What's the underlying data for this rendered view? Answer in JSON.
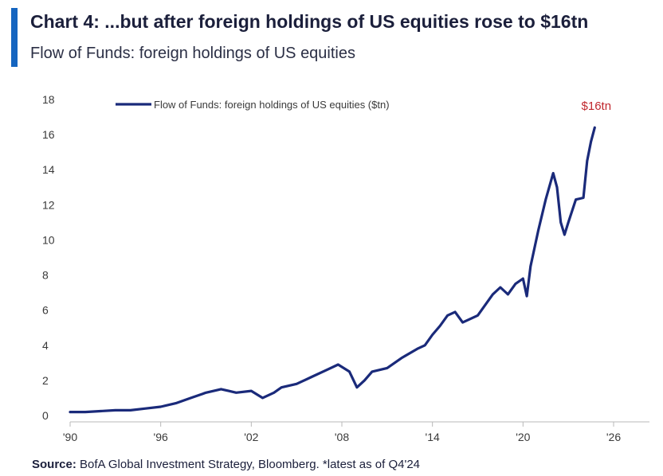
{
  "header": {
    "title": "Chart 4: ...but after foreign holdings of US equities rose to $16tn",
    "subtitle": "Flow of Funds: foreign holdings of US equities"
  },
  "source": {
    "label": "Source:",
    "text": " BofA Global Investment Strategy, Bloomberg. *latest as of Q4'24"
  },
  "colors": {
    "accent": "#1565c0",
    "series": "#1a2a7a",
    "callout": "#c0272d"
  },
  "chart_data": {
    "type": "line",
    "legend": "top-left",
    "grid": false,
    "xlim": [
      1990,
      2026
    ],
    "ylim": [
      0,
      18
    ],
    "x_ticks": [
      {
        "value": 1990,
        "label": "'90"
      },
      {
        "value": 1996,
        "label": "'96"
      },
      {
        "value": 2002,
        "label": "'02"
      },
      {
        "value": 2008,
        "label": "'08"
      },
      {
        "value": 2014,
        "label": "'14"
      },
      {
        "value": 2020,
        "label": "'20"
      },
      {
        "value": 2026,
        "label": "'26"
      }
    ],
    "y_ticks": [
      {
        "value": 0,
        "label": "0"
      },
      {
        "value": 2,
        "label": "2"
      },
      {
        "value": 4,
        "label": "4"
      },
      {
        "value": 6,
        "label": "6"
      },
      {
        "value": 8,
        "label": "8"
      },
      {
        "value": 10,
        "label": "10"
      },
      {
        "value": 12,
        "label": "12"
      },
      {
        "value": 14,
        "label": "14"
      },
      {
        "value": 16,
        "label": "16"
      },
      {
        "value": 18,
        "label": "18"
      }
    ],
    "annotations": [
      {
        "x": 2024.75,
        "y": 16.4,
        "text": "$16tn"
      }
    ],
    "series": [
      {
        "name": "Flow of Funds: foreign holdings of US equities ($tn)",
        "x": [
          1990,
          1991,
          1992,
          1993,
          1994,
          1995,
          1996,
          1997,
          1998,
          1999,
          2000,
          2000.5,
          2001,
          2002,
          2002.75,
          2003.5,
          2004,
          2005,
          2006,
          2007,
          2007.75,
          2008.5,
          2009,
          2009.5,
          2010,
          2011,
          2011.5,
          2012,
          2013,
          2013.5,
          2014,
          2014.5,
          2015,
          2015.5,
          2016,
          2017,
          2018,
          2018.5,
          2019,
          2019.5,
          2020,
          2020.25,
          2020.5,
          2021,
          2021.5,
          2022,
          2022.25,
          2022.5,
          2022.75,
          2023,
          2023.5,
          2024,
          2024.25,
          2024.5,
          2024.75
        ],
        "values": [
          0.2,
          0.2,
          0.25,
          0.3,
          0.3,
          0.4,
          0.5,
          0.7,
          1.0,
          1.3,
          1.5,
          1.4,
          1.3,
          1.4,
          1.0,
          1.3,
          1.6,
          1.8,
          2.2,
          2.6,
          2.9,
          2.5,
          1.6,
          2.0,
          2.5,
          2.7,
          3.0,
          3.3,
          3.8,
          4.0,
          4.6,
          5.1,
          5.7,
          5.9,
          5.3,
          5.7,
          6.9,
          7.3,
          6.9,
          7.5,
          7.8,
          6.8,
          8.5,
          10.5,
          12.3,
          13.8,
          13.0,
          11.0,
          10.3,
          11.0,
          12.3,
          12.4,
          14.5,
          15.6,
          16.4
        ]
      }
    ]
  }
}
